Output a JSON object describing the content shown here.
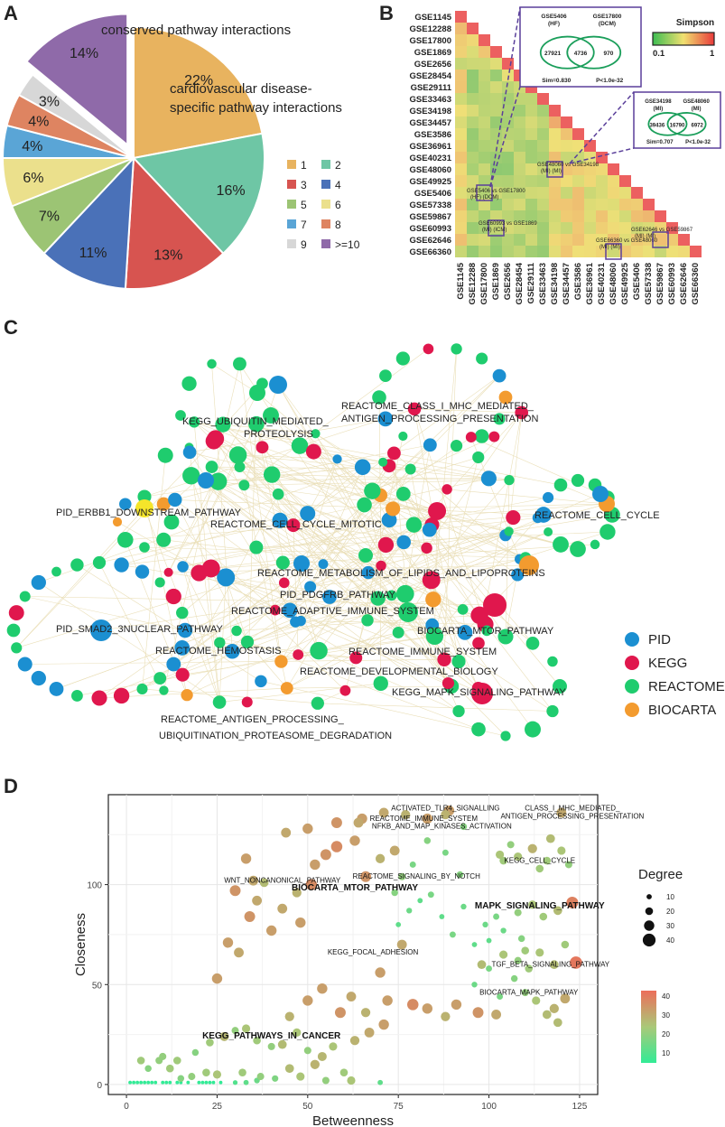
{
  "panels": {
    "a": "A",
    "b": "B",
    "c": "C",
    "d": "D"
  },
  "colors": {
    "pid": "#1b8fd1",
    "kegg": "#e0174d",
    "reactome": "#1fcc6e",
    "biocarta": "#f39b2f",
    "highlight": "#f5e52a"
  },
  "chart_data": [
    {
      "type": "pie",
      "panel": "A",
      "annotations": [
        "conserved pathway interactions",
        "cardiovascular disease-specific pathway interactions"
      ],
      "slices": [
        {
          "label": "1",
          "value": 22,
          "text": "22%",
          "color": "#e8b35f",
          "exploded": false
        },
        {
          "label": "2",
          "value": 16,
          "text": "16%",
          "color": "#6ec6a5",
          "exploded": false
        },
        {
          "label": "3",
          "value": 13,
          "text": "13%",
          "color": "#d75450",
          "exploded": false
        },
        {
          "label": "4",
          "value": 11,
          "text": "11%",
          "color": "#4a71b8",
          "exploded": false
        },
        {
          "label": "5",
          "value": 7,
          "text": "7%",
          "color": "#9cc474",
          "exploded": false
        },
        {
          "label": "6",
          "value": 6,
          "text": "6%",
          "color": "#ebe08c",
          "exploded": false
        },
        {
          "label": "7",
          "value": 4,
          "text": "4%",
          "color": "#5aa5d6",
          "exploded": false
        },
        {
          "label": "8",
          "value": 4,
          "text": "4%",
          "color": "#de8461",
          "exploded": false
        },
        {
          "label": "9",
          "value": 3,
          "text": "3%",
          "color": "#d7d7d7",
          "exploded": false
        },
        {
          "label": ">=10",
          "value": 14,
          "text": "14%",
          "color": "#8f6aa9",
          "exploded": true
        }
      ],
      "legend": [
        "1",
        "2",
        "3",
        "4",
        "5",
        "6",
        "7",
        "8",
        "9",
        ">=10"
      ]
    },
    {
      "type": "heatmap",
      "panel": "B",
      "labels": [
        "GSE1145",
        "GSE12288",
        "GSE17800",
        "GSE1869",
        "GSE2656",
        "GSE28454",
        "GSE29111",
        "GSE33463",
        "GSE34198",
        "GSE34457",
        "GSE3586",
        "GSE36961",
        "GSE40231",
        "GSE48060",
        "GSE49925",
        "GSE5406",
        "GSE57338",
        "GSE59867",
        "GSE60993",
        "GSE62646",
        "GSE66360"
      ],
      "colorbar": {
        "title": "Simpson",
        "min": "0.1",
        "max": "1"
      },
      "cell_annotations": [
        {
          "text1": "GSE5406 vs GSE17800",
          "text2": "(HF)        (DCM)"
        },
        {
          "text1": "GSE60993 vs GSE1869",
          "text2": "(MI)         (ICM)"
        },
        {
          "text1": "GSE48060 vs GSE34198",
          "text2": "(MI)              (MI)"
        },
        {
          "text1": "GSE66360 vs GSE48060",
          "text2": "(MI)              (MI)"
        },
        {
          "text1": "GSE62646 vs GSE59867",
          "text2": "(MI)              (MI)"
        }
      ],
      "venn": [
        {
          "left": "GSE5406",
          "left_sub": "(HF)",
          "right": "GSE17800",
          "right_sub": "(DCM)",
          "a": "27921",
          "ab": "4736",
          "b": "970",
          "sim": "Sim=0.830",
          "p": "P<1.0e-32"
        },
        {
          "left": "GSE34198",
          "left_sub": "(MI)",
          "right": "GSE48060",
          "right_sub": "(MI)",
          "a": "39436",
          "ab": "16790",
          "b": "6972",
          "sim": "Sim=0.707",
          "p": "P<1.0e-32"
        }
      ]
    },
    {
      "type": "network",
      "panel": "C",
      "labels": [
        "KEGG_UBIQUITIN_MEDIATED_",
        "PROTEOLYSIS",
        "REACTOME_CLASS_I_MHC_MEDIATED_",
        "ANTIGEN_PROCESSING_PRESENTATION",
        "PID_ERBB1_DOWNSTREAM_PATHWAY",
        "REACTOME_CELL_CYCLE_MITOTIC",
        "REACTOME_CELL_CYCLE",
        "REACTOME_METABOLISM_OF_LIPIDS_AND_LIPOPROTEINS",
        "PID_PDGFRB_PATHWAY",
        "REACTOME_ADAPTIVE_IMMUNE_SYSTEM",
        "PID_SMAD2_3NUCLEAR_PATHWAY",
        "BIOCARTA_MTOR_PATHWAY",
        "REACTOME_HEMOSTASIS",
        "REACTOME_IMMUNE_SYSTEM",
        "REACTOME_DEVELOPMENTAL_BIOLOGY",
        "KEGG_MAPK_SIGNALING_PATHWAY",
        "REACTOME_ANTIGEN_PROCESSING_",
        "UBIQUITINATION_PROTEASOME_DEGRADATION"
      ],
      "legend": [
        "PID",
        "KEGG",
        "REACTOME",
        "BIOCARTA"
      ]
    },
    {
      "type": "scatter",
      "panel": "D",
      "xlabel": "Betweenness",
      "ylabel": "Closeness",
      "xlim": [
        -5,
        130
      ],
      "ylim": [
        -5,
        145
      ],
      "xticks": [
        0,
        25,
        50,
        75,
        100,
        125
      ],
      "yticks": [
        0,
        50,
        100
      ],
      "legend_size": {
        "title": "Degree",
        "values": [
          10,
          20,
          30,
          40
        ]
      },
      "legend_color": {
        "values": [
          40,
          30,
          20,
          10
        ]
      },
      "labels": [
        {
          "text": "ACTIVATED_TLR4_SIGNALLING",
          "x": 88,
          "y": 137,
          "bold": false
        },
        {
          "text": "CLASS_I_MHC_MEDIATED_",
          "x": 123,
          "y": 137,
          "bold": false
        },
        {
          "text": "ANTIGEN_PROCESSING_PRESENTATION",
          "x": 123,
          "y": 133,
          "bold": false
        },
        {
          "text": "REACTOME_IMMUNE_SYSTEM",
          "x": 82,
          "y": 132,
          "bold": false
        },
        {
          "text": "NFKB_AND_MAP_KINASES_ACTIVATION",
          "x": 87,
          "y": 128,
          "bold": false
        },
        {
          "text": "KEGG_CELL_CYCLE",
          "x": 114,
          "y": 111,
          "bold": false
        },
        {
          "text": "REACTOME_SIGNALING_BY_NOTCH",
          "x": 80,
          "y": 103,
          "bold": false
        },
        {
          "text": "WNT_NONCANONICAL_PATHWAY",
          "x": 43,
          "y": 101,
          "bold": false
        },
        {
          "text": "BIOCARTA_MTOR_PATHWAY",
          "x": 63,
          "y": 97,
          "bold": true
        },
        {
          "text": "MAPK_SIGNALING_PATHWAY",
          "x": 114,
          "y": 88,
          "bold": true
        },
        {
          "text": "KEGG_FOCAL_ADHESION",
          "x": 68,
          "y": 65,
          "bold": false
        },
        {
          "text": "TGF_BETA_SIGNALING_PATHWAY",
          "x": 117,
          "y": 59,
          "bold": false
        },
        {
          "text": "BIOCARTA_MAPK_PATHWAY",
          "x": 111,
          "y": 45,
          "bold": false
        },
        {
          "text": "KEGG_PATHWAYS_IN_CANCER",
          "x": 40,
          "y": 23,
          "bold": true
        }
      ],
      "points": [
        [
          1,
          1,
          3
        ],
        [
          2,
          1,
          3
        ],
        [
          3,
          1,
          3
        ],
        [
          4,
          1,
          3
        ],
        [
          5,
          1,
          3
        ],
        [
          6,
          1,
          3
        ],
        [
          7,
          1,
          3
        ],
        [
          8,
          1,
          3
        ],
        [
          10,
          1,
          3
        ],
        [
          11,
          1,
          3
        ],
        [
          12,
          1,
          3
        ],
        [
          14,
          1,
          3
        ],
        [
          15,
          1,
          3
        ],
        [
          17,
          1,
          3
        ],
        [
          20,
          1,
          3
        ],
        [
          21,
          1,
          3
        ],
        [
          22,
          1,
          3
        ],
        [
          23,
          1,
          3
        ],
        [
          24,
          1,
          3
        ],
        [
          26,
          1,
          3
        ],
        [
          30,
          1,
          8
        ],
        [
          33,
          1,
          10
        ],
        [
          36,
          2,
          12
        ],
        [
          41,
          3,
          15
        ],
        [
          55,
          2,
          18
        ],
        [
          62,
          2,
          22
        ],
        [
          70,
          1,
          10
        ],
        [
          4,
          12,
          20
        ],
        [
          6,
          8,
          16
        ],
        [
          10,
          14,
          18
        ],
        [
          14,
          12,
          20
        ],
        [
          19,
          16,
          16
        ],
        [
          23,
          21,
          20
        ],
        [
          27,
          24,
          25
        ],
        [
          30,
          27,
          18
        ],
        [
          33,
          28,
          22
        ],
        [
          36,
          22,
          20
        ],
        [
          40,
          19,
          18
        ],
        [
          43,
          20,
          24
        ],
        [
          47,
          26,
          22
        ],
        [
          50,
          17,
          18
        ],
        [
          54,
          14,
          25
        ],
        [
          57,
          19,
          22
        ],
        [
          63,
          22,
          26
        ],
        [
          67,
          26,
          28
        ],
        [
          71,
          30,
          30
        ],
        [
          25,
          53,
          30
        ],
        [
          28,
          71,
          30
        ],
        [
          31,
          66,
          28
        ],
        [
          34,
          84,
          32
        ],
        [
          36,
          92,
          28
        ],
        [
          40,
          77,
          30
        ],
        [
          43,
          88,
          28
        ],
        [
          47,
          96,
          26
        ],
        [
          35,
          102,
          28
        ],
        [
          38,
          101,
          24
        ],
        [
          30,
          97,
          32
        ],
        [
          52,
          110,
          30
        ],
        [
          55,
          115,
          32
        ],
        [
          58,
          119,
          34
        ],
        [
          63,
          122,
          30
        ],
        [
          66,
          104,
          32
        ],
        [
          70,
          113,
          26
        ],
        [
          74,
          117,
          28
        ],
        [
          44,
          126,
          28
        ],
        [
          50,
          128,
          30
        ],
        [
          58,
          131,
          32
        ],
        [
          65,
          133,
          30
        ],
        [
          71,
          136,
          28
        ],
        [
          77,
          135,
          26
        ],
        [
          83,
          133,
          30
        ],
        [
          89,
          137,
          30
        ],
        [
          93,
          129,
          16
        ],
        [
          45,
          34,
          26
        ],
        [
          50,
          42,
          30
        ],
        [
          54,
          48,
          30
        ],
        [
          59,
          36,
          32
        ],
        [
          62,
          44,
          28
        ],
        [
          66,
          36,
          26
        ],
        [
          70,
          56,
          30
        ],
        [
          72,
          42,
          30
        ],
        [
          79,
          40,
          34
        ],
        [
          83,
          38,
          30
        ],
        [
          88,
          34,
          26
        ],
        [
          91,
          40,
          30
        ],
        [
          97,
          36,
          32
        ],
        [
          102,
          35,
          28
        ],
        [
          75,
          80,
          10
        ],
        [
          78,
          87,
          12
        ],
        [
          81,
          92,
          10
        ],
        [
          84,
          95,
          14
        ],
        [
          87,
          84,
          10
        ],
        [
          90,
          75,
          14
        ],
        [
          93,
          89,
          12
        ],
        [
          96,
          70,
          10
        ],
        [
          99,
          80,
          12
        ],
        [
          100,
          72,
          10
        ],
        [
          102,
          84,
          14
        ],
        [
          104,
          77,
          12
        ],
        [
          76,
          104,
          18
        ],
        [
          74,
          96,
          16
        ],
        [
          79,
          110,
          14
        ],
        [
          83,
          122,
          16
        ],
        [
          88,
          116,
          14
        ],
        [
          92,
          105,
          16
        ],
        [
          104,
          112,
          20
        ],
        [
          106,
          120,
          18
        ],
        [
          108,
          114,
          22
        ],
        [
          112,
          118,
          26
        ],
        [
          114,
          108,
          20
        ],
        [
          117,
          123,
          24
        ],
        [
          120,
          117,
          22
        ],
        [
          116,
          112,
          20
        ],
        [
          122,
          110,
          18
        ],
        [
          104,
          65,
          22
        ],
        [
          108,
          62,
          18
        ],
        [
          111,
          58,
          20
        ],
        [
          114,
          66,
          22
        ],
        [
          118,
          60,
          24
        ],
        [
          121,
          70,
          20
        ],
        [
          107,
          53,
          16
        ],
        [
          110,
          46,
          18
        ],
        [
          113,
          42,
          22
        ],
        [
          116,
          35,
          24
        ],
        [
          118,
          38,
          26
        ],
        [
          121,
          43,
          28
        ],
        [
          108,
          86,
          18
        ],
        [
          112,
          90,
          22
        ],
        [
          115,
          84,
          20
        ],
        [
          119,
          87,
          24
        ],
        [
          123,
          91,
          36
        ],
        [
          124,
          61,
          38
        ],
        [
          109,
          73,
          16
        ],
        [
          100,
          58,
          14
        ],
        [
          96,
          50,
          12
        ],
        [
          103,
          44,
          14
        ],
        [
          9,
          12,
          18
        ],
        [
          12,
          8,
          20
        ],
        [
          15,
          3,
          16
        ],
        [
          18,
          4,
          18
        ],
        [
          22,
          6,
          20
        ],
        [
          25,
          5,
          22
        ],
        [
          32,
          6,
          20
        ],
        [
          37,
          4,
          18
        ],
        [
          45,
          8,
          24
        ],
        [
          48,
          4,
          22
        ],
        [
          52,
          10,
          26
        ],
        [
          60,
          6,
          20
        ],
        [
          88,
          135,
          26
        ],
        [
          64,
          131,
          28
        ],
        [
          120,
          136,
          28
        ],
        [
          103,
          115,
          22
        ],
        [
          51,
          100,
          34
        ],
        [
          33,
          113,
          30
        ],
        [
          48,
          81,
          30
        ],
        [
          76,
          70,
          28
        ],
        [
          98,
          60,
          24
        ],
        [
          110,
          67,
          20
        ],
        [
          119,
          31,
          24
        ]
      ]
    }
  ]
}
